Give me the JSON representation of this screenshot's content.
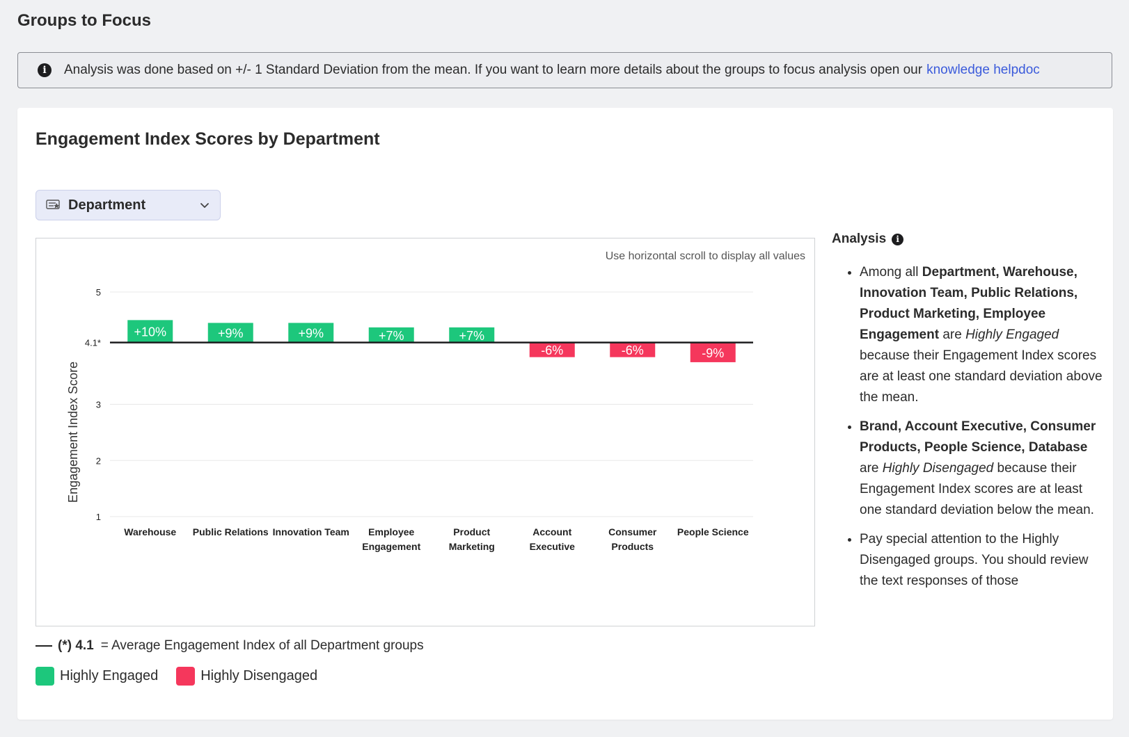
{
  "page": {
    "title": "Groups to Focus"
  },
  "banner": {
    "icon": "info-icon",
    "text": "Analysis was done based on +/- 1 Standard Deviation from the mean. If you want to learn more details about the groups to focus analysis open our",
    "link": "knowledge helpdoc"
  },
  "card": {
    "title": "Engagement Index Scores by Department"
  },
  "dropdown": {
    "icon": "grouping-icon",
    "value": "Department"
  },
  "chart": {
    "scroll_hint": "Use horizontal scroll to display all values",
    "colors": {
      "engaged": "#1dc77c",
      "disengaged": "#f5375c",
      "mean_line": "#1d1d1f",
      "grid": "#e8e8e8"
    }
  },
  "chart_data": {
    "type": "bar",
    "ylabel": "Engagement Index Score",
    "xlabel": "",
    "ylim": [
      1,
      5
    ],
    "yticks": [
      "1",
      "2",
      "3",
      "4.1*",
      "5"
    ],
    "ytick_values": [
      1,
      2,
      3,
      4.1,
      5
    ],
    "mean": 4.1,
    "categories": [
      "Warehouse",
      "Public Relations",
      "Innovation Team",
      "Employee Engagement",
      "Product Marketing",
      "Account Executive",
      "Consumer Products",
      "People Science"
    ],
    "category_lines": [
      [
        "Warehouse"
      ],
      [
        "Public Relations"
      ],
      [
        "Innovation Team"
      ],
      [
        "Employee",
        "Engagement"
      ],
      [
        "Product",
        "Marketing"
      ],
      [
        "Account",
        "Executive"
      ],
      [
        "Consumer",
        "Products"
      ],
      [
        "People Science"
      ]
    ],
    "values": [
      4.5,
      4.45,
      4.45,
      4.37,
      4.37,
      3.84,
      3.84,
      3.75
    ],
    "labels": [
      "+10%",
      "+9%",
      "+9%",
      "+7%",
      "+7%",
      "-6%",
      "-6%",
      "-9%"
    ],
    "groups": [
      "engaged",
      "engaged",
      "engaged",
      "engaged",
      "engaged",
      "disengaged",
      "disengaged",
      "disengaged"
    ],
    "grid": true
  },
  "legend": {
    "avg_strong": "(*) 4.1",
    "avg_text": "= Average Engagement Index of all Department groups",
    "engaged": "Highly Engaged",
    "disengaged": "Highly Disengaged"
  },
  "analysis": {
    "title": "Analysis",
    "icon": "info-icon",
    "b1_strong": "Department, Warehouse, Innovation Team, Public Relations, Product Marketing, Employee Engagement",
    "b1_pre": "Among all",
    "b1_are": "are",
    "b1_em": "Highly Engaged",
    "b1_tail": "because their Engagement Index scores are at least one standard deviation above the mean.",
    "b2_strong": "Brand, Account Executive, Consumer Products, People Science, Database",
    "b2_are": "are",
    "b2_em": "Highly Disengaged",
    "b2_tail": "because their Engagement Index scores are at least one standard deviation below the mean.",
    "b3_text": "Pay special attention to the Highly Disengaged groups. You should review the text responses of those"
  }
}
